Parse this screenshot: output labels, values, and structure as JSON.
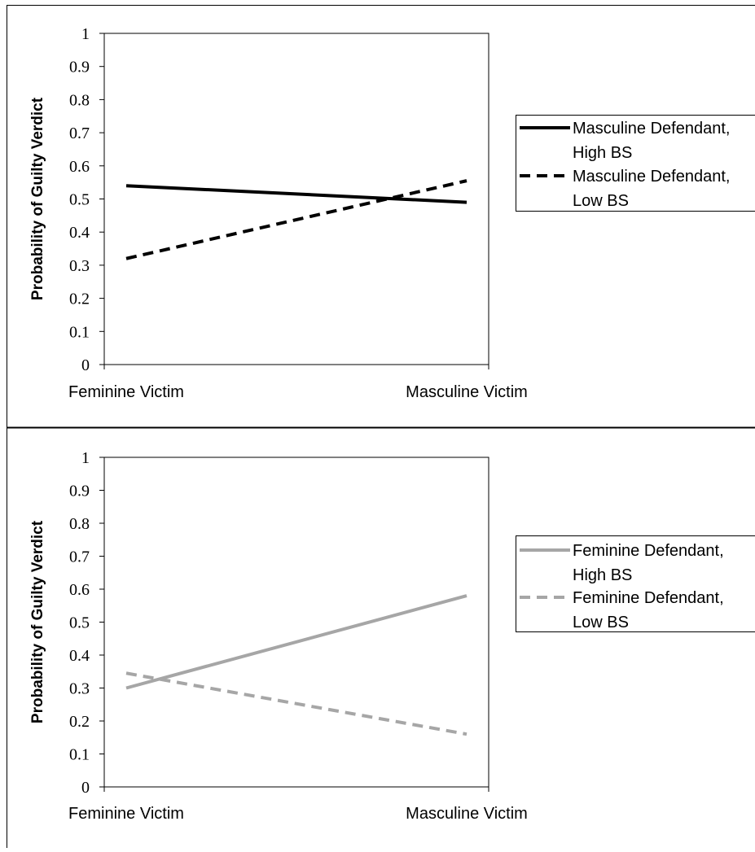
{
  "chart_data": [
    {
      "type": "line",
      "title": "",
      "xlabel": "",
      "ylabel": "Probability of Guilty Verdict",
      "ylim": [
        0,
        1
      ],
      "y_ticks": [
        "0",
        "0.1",
        "0.2",
        "0.3",
        "0.4",
        "0.5",
        "0.6",
        "0.7",
        "0.8",
        "0.9",
        "1"
      ],
      "categories": [
        "Feminine Victim",
        "Masculine Victim"
      ],
      "grid": false,
      "legend_position": "right",
      "series": [
        {
          "name": "Masculine Defendant, High BS",
          "name_lines": [
            "Masculine Defendant,",
            "High BS"
          ],
          "values": [
            0.54,
            0.49
          ],
          "color": "#000000",
          "dash": "solid"
        },
        {
          "name": "Masculine Defendant, Low BS",
          "name_lines": [
            "Masculine Defendant,",
            "Low BS"
          ],
          "values": [
            0.32,
            0.555
          ],
          "color": "#000000",
          "dash": "dashed"
        }
      ]
    },
    {
      "type": "line",
      "title": "",
      "xlabel": "",
      "ylabel": "Probability of Guilty Verdict",
      "ylim": [
        0,
        1
      ],
      "y_ticks": [
        "0",
        "0.1",
        "0.2",
        "0.3",
        "0.4",
        "0.5",
        "0.6",
        "0.7",
        "0.8",
        "0.9",
        "1"
      ],
      "categories": [
        "Feminine Victim",
        "Masculine Victim"
      ],
      "grid": false,
      "legend_position": "right",
      "series": [
        {
          "name": "Feminine Defendant, High BS",
          "name_lines": [
            "Feminine Defendant,",
            "High BS"
          ],
          "values": [
            0.3,
            0.58
          ],
          "color": "#a6a6a6",
          "dash": "solid"
        },
        {
          "name": "Feminine Defendant, Low BS",
          "name_lines": [
            "Feminine Defendant,",
            "Low BS"
          ],
          "values": [
            0.345,
            0.16
          ],
          "color": "#a6a6a6",
          "dash": "dashed"
        }
      ]
    }
  ]
}
